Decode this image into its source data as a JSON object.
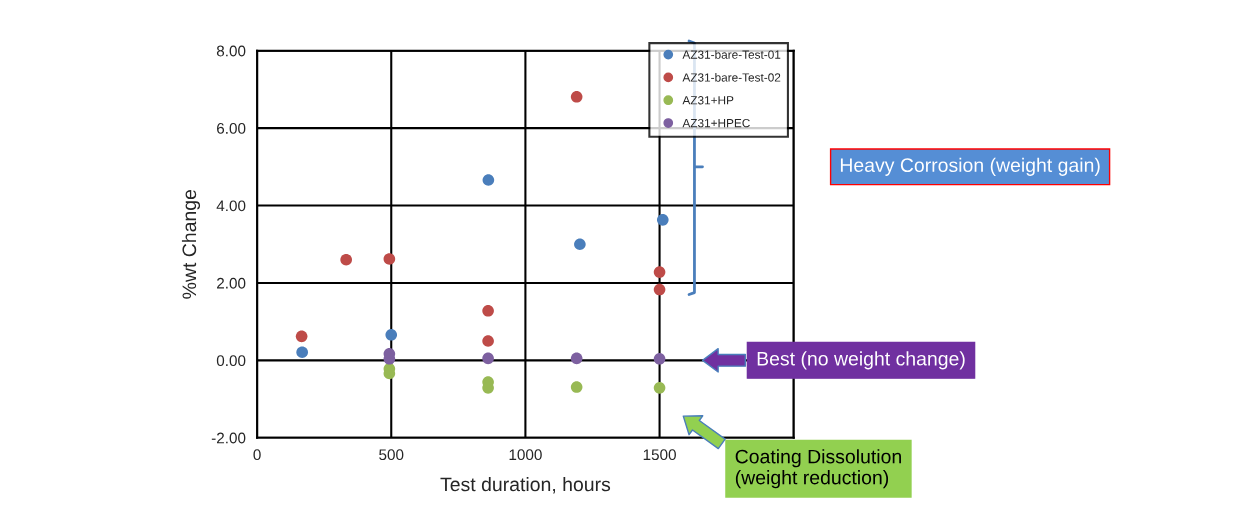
{
  "chart_data": {
    "type": "scatter",
    "xlabel": "Test duration, hours",
    "ylabel": "%wt Change",
    "xlim": [
      0,
      2000
    ],
    "xticks": [
      0,
      500,
      1000,
      1500,
      {
        "value": 2000,
        "label": null
      }
    ],
    "ylim": [
      -2,
      8
    ],
    "yticks": [
      {
        "value": -2,
        "label": "-2.00"
      },
      {
        "value": 0,
        "label": "0.00"
      },
      {
        "value": 2,
        "label": "2.00"
      },
      {
        "value": 4,
        "label": "4.00"
      },
      {
        "value": 6,
        "label": "6.00"
      },
      {
        "value": 8,
        "label": "8.00"
      }
    ],
    "grid": true,
    "legend": "top right",
    "marker": "circle",
    "series": [
      {
        "name": "AZ31-bare-Test-01",
        "color": "#4a7ebb",
        "x": [
          168,
          500,
          862,
          1203,
          1512
        ],
        "values": [
          0.21,
          0.66,
          4.66,
          3.0,
          3.63
        ]
      },
      {
        "name": "AZ31-bare-Test-02",
        "color": "#be4b48",
        "x": [
          166,
          332,
          493,
          861,
          861,
          1191,
          1500,
          1500
        ],
        "values": [
          0.62,
          2.6,
          2.62,
          1.28,
          0.5,
          6.81,
          2.28,
          1.83
        ]
      },
      {
        "name": "AZ31+HP",
        "color": "#98b954",
        "x": [
          493,
          493,
          861,
          861,
          1191,
          1500
        ],
        "values": [
          -0.22,
          -0.34,
          -0.56,
          -0.71,
          -0.69,
          -0.71
        ]
      },
      {
        "name": "AZ31+HPEC",
        "color": "#7d60a0",
        "x": [
          493,
          493,
          861,
          1191,
          1500
        ],
        "values": [
          0.17,
          0.04,
          0.05,
          0.05,
          0.04
        ]
      }
    ],
    "annotations": [
      "Heavy Corrosion (weight gain)",
      "Best (no weight change)",
      "Coating Dissolution\n(weight reduction)"
    ]
  }
}
